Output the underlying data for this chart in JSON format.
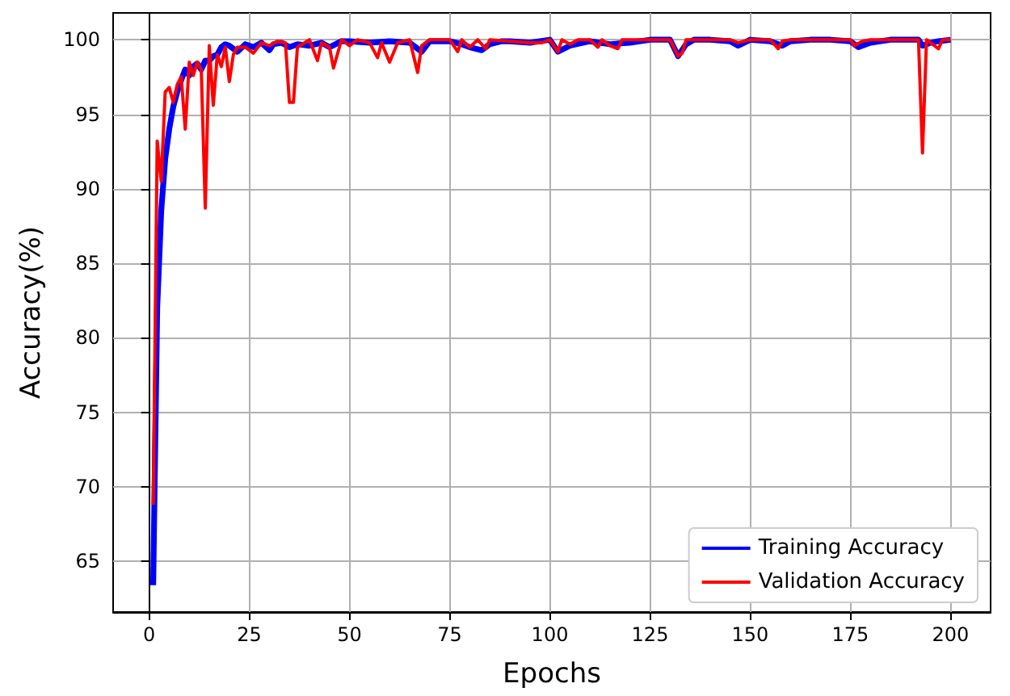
{
  "chart_data": {
    "type": "line",
    "xlabel": "Epochs",
    "ylabel": "Accuracy(%)",
    "xlim": [
      -9,
      210
    ],
    "xticks": [
      0,
      25,
      50,
      75,
      100,
      125,
      150,
      175,
      200
    ],
    "ylim": [
      61.6,
      101.8
    ],
    "yticks": [
      65,
      70,
      75,
      80,
      85,
      90,
      95,
      100
    ],
    "grid": true,
    "legend": "bottom right",
    "marker": "none",
    "line_style": "solid",
    "series": [
      {
        "name": "Training Accuracy",
        "color": "#0000ff",
        "x": [
          1,
          2,
          3,
          4,
          5,
          6,
          7,
          8,
          9,
          10,
          11,
          12,
          13,
          14,
          15,
          16,
          17,
          18,
          19,
          20,
          22,
          24,
          26,
          28,
          30,
          31,
          33,
          35,
          37,
          40,
          43,
          45,
          48,
          50,
          55,
          60,
          65,
          68,
          70,
          75,
          78,
          80,
          83,
          85,
          88,
          90,
          95,
          100,
          102,
          105,
          110,
          115,
          120,
          125,
          130,
          132,
          134,
          136,
          140,
          145,
          147,
          150,
          155,
          158,
          160,
          165,
          170,
          175,
          177,
          180,
          185,
          190,
          192,
          193,
          195,
          197,
          200
        ],
        "values": [
          63.4,
          82,
          88.5,
          92,
          94,
          95.5,
          96.5,
          97.3,
          98,
          97.6,
          98.2,
          98.4,
          98,
          98.6,
          98.6,
          98.9,
          99,
          99.5,
          99.7,
          99.6,
          99.2,
          99.7,
          99.5,
          99.8,
          99.3,
          99.7,
          99.8,
          99.5,
          99.7,
          99.6,
          99.8,
          99.5,
          99.9,
          99.9,
          99.8,
          99.9,
          99.8,
          99.2,
          99.9,
          99.9,
          99.7,
          99.5,
          99.3,
          99.7,
          99.9,
          99.9,
          99.8,
          100,
          99.2,
          99.6,
          99.9,
          99.7,
          99.8,
          100,
          100,
          98.9,
          99.7,
          100,
          100,
          99.9,
          99.6,
          100,
          99.9,
          99.6,
          99.9,
          100,
          100,
          99.9,
          99.5,
          99.8,
          100,
          100,
          100,
          99.6,
          99.8,
          99.9,
          100
        ]
      },
      {
        "name": "Validation Accuracy",
        "color": "#ff0000",
        "x": [
          1,
          2,
          3,
          4,
          5,
          6,
          7,
          8,
          9,
          10,
          11,
          12,
          13,
          14,
          15,
          16,
          17,
          18,
          19,
          20,
          21,
          22,
          24,
          26,
          28,
          30,
          32,
          34,
          35,
          36,
          37,
          40,
          42,
          43,
          45,
          46,
          48,
          50,
          52,
          55,
          57,
          58,
          60,
          62,
          65,
          67,
          68,
          70,
          75,
          77,
          78,
          80,
          82,
          84,
          85,
          90,
          95,
          98,
          100,
          102,
          103,
          105,
          107,
          110,
          112,
          113,
          115,
          117,
          118,
          120,
          130,
          132,
          133,
          134,
          140,
          145,
          147,
          150,
          155,
          157,
          158,
          160,
          175,
          176,
          178,
          180,
          192,
          193,
          194,
          197,
          198,
          200
        ],
        "values": [
          68.8,
          93.2,
          90.5,
          96.5,
          96.8,
          95.8,
          97,
          97.5,
          94,
          98.5,
          97.6,
          98.5,
          98,
          88.7,
          99.6,
          95.6,
          99,
          98.2,
          99.5,
          97.2,
          99,
          99.5,
          99.5,
          99.1,
          99.8,
          99.6,
          99.9,
          99.8,
          95.8,
          95.8,
          99.5,
          100,
          98.6,
          99.8,
          99.5,
          98.1,
          100,
          99.6,
          100,
          99.8,
          98.8,
          99.8,
          98.5,
          99.8,
          100,
          97.8,
          99.6,
          100,
          100,
          99.2,
          100,
          99.5,
          100,
          99.4,
          100,
          99.9,
          99.8,
          99.8,
          100,
          99.2,
          100,
          99.7,
          100,
          100,
          99.5,
          100,
          99.6,
          99.4,
          100,
          100,
          100,
          98.9,
          99.1,
          100,
          100,
          100,
          99.8,
          100,
          100,
          99.4,
          99.9,
          100,
          100,
          99.6,
          99.9,
          100,
          100,
          92.4,
          100,
          99.4,
          100,
          100
        ]
      }
    ]
  }
}
